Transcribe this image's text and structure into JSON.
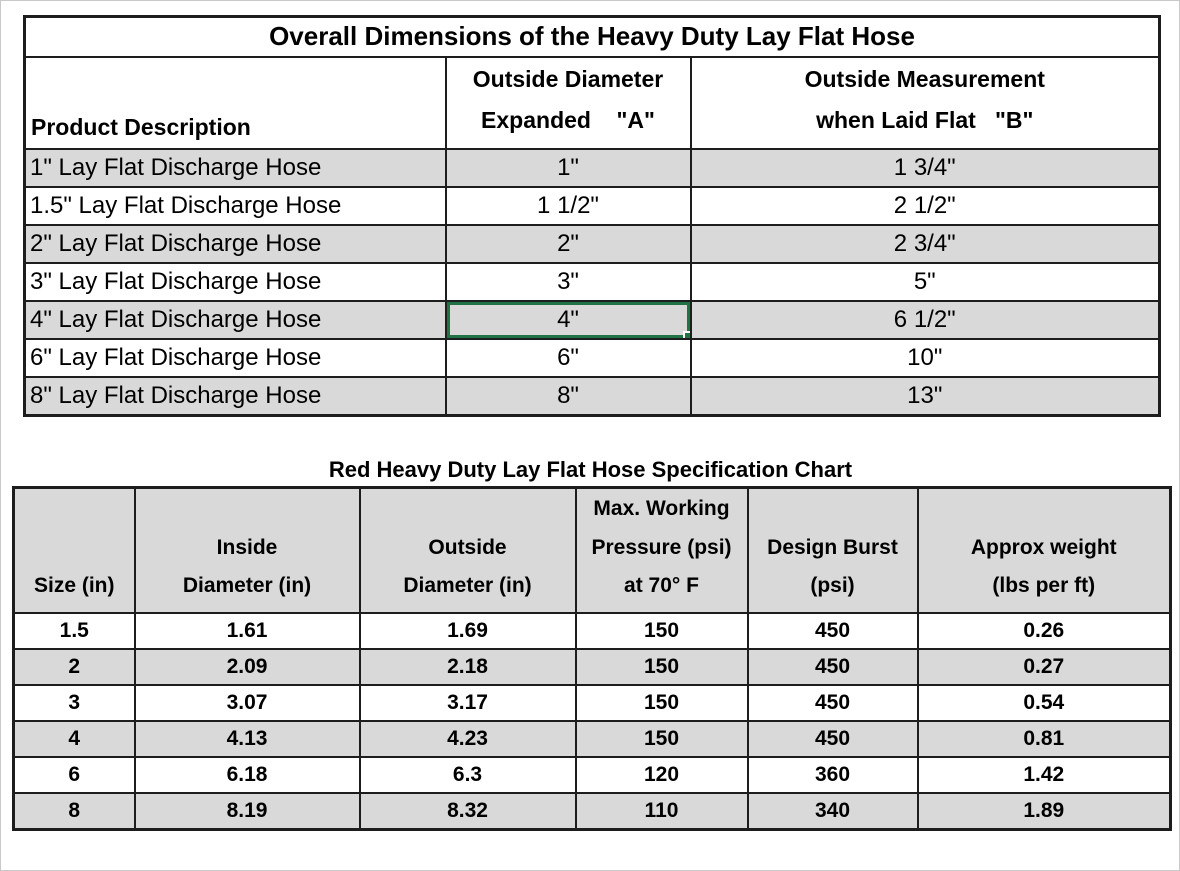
{
  "colors": {
    "band_fill": "#d9d9d9",
    "border": "#1d1d1d",
    "selection_green": "#217346",
    "text": "#000000",
    "background": "#ffffff"
  },
  "table1": {
    "title": "Overall Dimensions of the Heavy Duty Lay Flat Hose",
    "headers": {
      "product": "Product Description",
      "expanded": "Outside Diameter\nExpanded    \"A\"",
      "flat": "Outside Measurement\nwhen Laid Flat   \"B\""
    },
    "rows": [
      {
        "product": "1\" Lay Flat Discharge Hose",
        "expanded": "1\"",
        "flat": "1 3/4\""
      },
      {
        "product": "1.5\" Lay Flat Discharge Hose",
        "expanded": "1 1/2\"",
        "flat": "2 1/2\""
      },
      {
        "product": "2\" Lay Flat Discharge Hose",
        "expanded": "2\"",
        "flat": "2 3/4\""
      },
      {
        "product": "3\" Lay Flat Discharge Hose",
        "expanded": "3\"",
        "flat": "5\""
      },
      {
        "product": "4\" Lay Flat Discharge Hose",
        "expanded": "4\"",
        "flat": "6 1/2\""
      },
      {
        "product": "6\" Lay Flat Discharge Hose",
        "expanded": "6\"",
        "flat": "10\""
      },
      {
        "product": "8\" Lay Flat Discharge Hose",
        "expanded": "8\"",
        "flat": "13\""
      }
    ],
    "selected_cell": {
      "row_index": 4,
      "column": "expanded"
    }
  },
  "table2": {
    "title": "Red Heavy Duty Lay Flat Hose Specification Chart",
    "headers": [
      "Size (in)",
      "Inside\nDiameter (in)",
      "Outside\nDiameter (in)",
      "Max. Working\nPressure (psi)\nat 70° F",
      "Design Burst\n(psi)",
      "Approx weight\n(lbs per ft)"
    ],
    "rows": [
      [
        "1.5",
        "1.61",
        "1.69",
        "150",
        "450",
        "0.26"
      ],
      [
        "2",
        "2.09",
        "2.18",
        "150",
        "450",
        "0.27"
      ],
      [
        "3",
        "3.07",
        "3.17",
        "150",
        "450",
        "0.54"
      ],
      [
        "4",
        "4.13",
        "4.23",
        "150",
        "450",
        "0.81"
      ],
      [
        "6",
        "6.18",
        "6.3",
        "120",
        "360",
        "1.42"
      ],
      [
        "8",
        "8.19",
        "8.32",
        "110",
        "340",
        "1.89"
      ]
    ]
  }
}
